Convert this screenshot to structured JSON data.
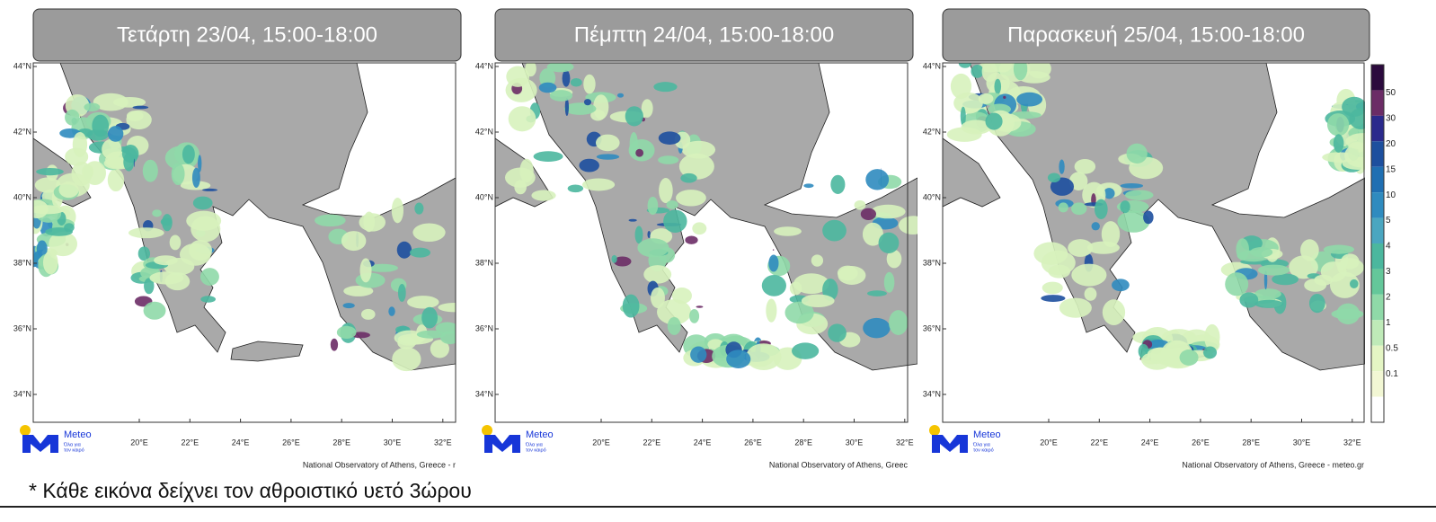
{
  "panels": [
    {
      "title": "Τετάρτη 23/04, 15:00-18:00",
      "credit": "National Observatory of Athens, Greece - r"
    },
    {
      "title": "Πέμπτη 24/04, 15:00-18:00",
      "credit": "National Observatory of Athens, Greec"
    },
    {
      "title": "Παρασκευή 25/04, 15:00-18:00",
      "credit": "National Observatory of Athens, Greece - meteo.gr"
    }
  ],
  "latitude_labels": [
    "44°N",
    "42°N",
    "40°N",
    "38°N",
    "36°N",
    "34°N"
  ],
  "longitude_labels": [
    "20°E",
    "22°E",
    "24°E",
    "26°E",
    "28°E",
    "30°E",
    "32°E"
  ],
  "logo": {
    "name": "Meteo",
    "tagline_line1": "Όλα για",
    "tagline_line2": "τον καιρό"
  },
  "colorbar": {
    "labels": [
      "50",
      "30",
      "20",
      "15",
      "10",
      "5",
      "4",
      "3",
      "2",
      "1",
      "0.5",
      "0.1"
    ]
  },
  "footnote": "* Κάθε εικόνα δείχνει τον αθροιστικό υετό 3ώρου"
}
